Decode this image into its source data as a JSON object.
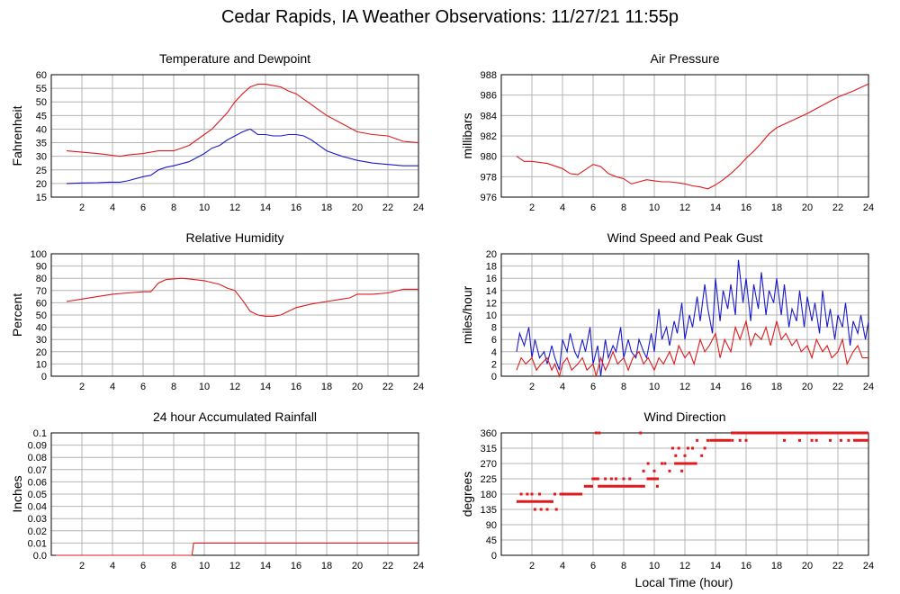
{
  "main_title": "Cedar Rapids, IA Weather Observations: 11/27/21 11:55p",
  "x_axis_title": "Local Time (hour)",
  "colors": {
    "primary": "#e0191b",
    "secondary": "#1a1acc",
    "grid": "#b4b4b4"
  },
  "chart_data": [
    {
      "id": "temp",
      "type": "line",
      "title": "Temperature and Dewpoint",
      "ylabel": "Fahrenheit",
      "xlim": [
        0,
        24
      ],
      "ylim": [
        15,
        60
      ],
      "xticks": [
        2,
        4,
        6,
        8,
        10,
        12,
        14,
        16,
        18,
        20,
        22,
        24
      ],
      "yticks": [
        15,
        20,
        25,
        30,
        35,
        40,
        45,
        50,
        55,
        60
      ],
      "grid": true,
      "series": [
        {
          "color": "#e0191b",
          "x": [
            1,
            2,
            3,
            3.8,
            4.5,
            5,
            6,
            7,
            8,
            9,
            10,
            10.5,
            11,
            11.5,
            12,
            12.5,
            13,
            13.5,
            14,
            14.5,
            15,
            15.5,
            16,
            16.5,
            17,
            17.5,
            18,
            19,
            20,
            21,
            22,
            23,
            24
          ],
          "y": [
            32,
            31.5,
            31,
            30.5,
            30,
            30.5,
            31,
            32,
            32,
            34,
            38,
            40,
            43,
            46,
            50,
            53,
            55.5,
            56.5,
            56.5,
            56,
            55.5,
            54,
            53,
            51,
            49,
            47,
            45,
            42,
            39,
            38,
            37.5,
            35.5,
            35
          ]
        },
        {
          "color": "#1a1acc",
          "x": [
            1,
            2,
            3,
            3.8,
            4.5,
            5,
            6,
            6.5,
            7,
            7.5,
            8,
            9,
            10,
            10.5,
            11,
            11.5,
            12,
            12.5,
            13,
            13.5,
            14,
            14.5,
            15,
            15.5,
            16,
            16.5,
            17,
            17.5,
            18,
            19,
            20,
            21,
            22,
            23,
            24
          ],
          "y": [
            20,
            20.2,
            20.3,
            20.5,
            20.5,
            21,
            22.5,
            23,
            25,
            26,
            26.5,
            28,
            31,
            33,
            34,
            36,
            37.5,
            39,
            40,
            38,
            38,
            37.5,
            37.5,
            38,
            38,
            37.5,
            36,
            34,
            32,
            30,
            28.5,
            27.5,
            27,
            26.5,
            26.5
          ]
        }
      ]
    },
    {
      "id": "pressure",
      "type": "line",
      "title": "Air Pressure",
      "ylabel": "millibars",
      "xlim": [
        0,
        24
      ],
      "ylim": [
        976,
        988
      ],
      "xticks": [
        2,
        4,
        6,
        8,
        10,
        12,
        14,
        16,
        18,
        20,
        22,
        24
      ],
      "yticks": [
        976,
        978,
        980,
        982,
        984,
        986,
        988
      ],
      "grid": true,
      "series": [
        {
          "color": "#e0191b",
          "x": [
            1,
            1.5,
            2,
            3,
            4,
            4.5,
            5,
            5.5,
            6,
            6.5,
            7,
            7.5,
            8,
            8.5,
            9,
            9.5,
            10,
            10.5,
            11,
            11.5,
            12,
            12.5,
            13,
            13.5,
            14,
            14.5,
            15,
            15.5,
            16,
            16.5,
            17,
            17.5,
            18,
            19,
            20,
            20.5,
            21,
            22,
            23,
            24
          ],
          "y": [
            980,
            979.5,
            979.5,
            979.3,
            978.8,
            978.3,
            978.2,
            978.7,
            979.2,
            979,
            978.3,
            978,
            977.8,
            977.3,
            977.5,
            977.7,
            977.6,
            977.5,
            977.5,
            977.4,
            977.3,
            977.1,
            977,
            976.8,
            977.2,
            977.7,
            978.3,
            979,
            979.8,
            980.5,
            981.3,
            982.2,
            982.8,
            983.5,
            984.2,
            984.6,
            985,
            985.8,
            986.4,
            987.1
          ]
        }
      ]
    },
    {
      "id": "humidity",
      "type": "line",
      "title": "Relative Humidity",
      "ylabel": "Percent",
      "xlim": [
        0,
        24
      ],
      "ylim": [
        0,
        100
      ],
      "xticks": [
        2,
        4,
        6,
        8,
        10,
        12,
        14,
        16,
        18,
        20,
        22,
        24
      ],
      "yticks": [
        0,
        10,
        20,
        30,
        40,
        50,
        60,
        70,
        80,
        90,
        100
      ],
      "grid": true,
      "series": [
        {
          "color": "#e0191b",
          "x": [
            1,
            2,
            3,
            4,
            5,
            6,
            6.5,
            7,
            7.5,
            8,
            8.5,
            9,
            10,
            11,
            11.5,
            12,
            12.5,
            13,
            13.5,
            14,
            14.5,
            15,
            15.5,
            16,
            17,
            18,
            19,
            19.5,
            20,
            21,
            22,
            23,
            24
          ],
          "y": [
            61,
            63,
            65,
            67,
            68,
            69,
            69,
            76,
            79,
            79.5,
            80,
            79.5,
            78,
            75,
            72,
            70,
            62,
            53,
            50,
            49,
            49,
            50,
            53,
            56,
            59,
            61,
            63,
            64,
            67,
            67,
            68,
            71,
            71
          ]
        }
      ]
    },
    {
      "id": "wind",
      "type": "line",
      "title": "Wind Speed and Peak Gust",
      "ylabel": "miles/hour",
      "xlim": [
        0,
        24
      ],
      "ylim": [
        0,
        20
      ],
      "xticks": [
        2,
        4,
        6,
        8,
        10,
        12,
        14,
        16,
        18,
        20,
        22,
        24
      ],
      "yticks": [
        0,
        2,
        4,
        6,
        8,
        10,
        12,
        14,
        16,
        18,
        20
      ],
      "grid": true,
      "series": [
        {
          "color": "#1a1acc",
          "x": [
            1,
            1.2,
            1.5,
            1.8,
            2,
            2.2,
            2.5,
            2.8,
            3,
            3.3,
            3.5,
            3.8,
            4,
            4.3,
            4.5,
            4.8,
            5,
            5.3,
            5.5,
            5.8,
            6,
            6.3,
            6.5,
            6.8,
            7,
            7.3,
            7.5,
            7.8,
            8,
            8.3,
            8.5,
            8.8,
            9,
            9.3,
            9.5,
            9.8,
            10,
            10.3,
            10.5,
            10.8,
            11,
            11.3,
            11.5,
            11.8,
            12,
            12.3,
            12.5,
            12.8,
            13,
            13.3,
            13.5,
            13.8,
            14,
            14.3,
            14.5,
            14.8,
            15,
            15.3,
            15.5,
            15.8,
            16,
            16.3,
            16.5,
            16.8,
            17,
            17.3,
            17.5,
            17.8,
            18,
            18.3,
            18.5,
            18.8,
            19,
            19.3,
            19.5,
            19.8,
            20,
            20.3,
            20.5,
            20.8,
            21,
            21.3,
            21.5,
            21.8,
            22,
            22.3,
            22.5,
            22.8,
            23,
            23.3,
            23.5,
            23.8,
            24
          ],
          "y": [
            4,
            7,
            5,
            8,
            3,
            6,
            3,
            4,
            2,
            5,
            3,
            1,
            6,
            4,
            7,
            4,
            3,
            6,
            4,
            8,
            2,
            5,
            0,
            6,
            3,
            5,
            4,
            8,
            3,
            6,
            4,
            3,
            6,
            4,
            3,
            7,
            4,
            11,
            6,
            8,
            5,
            9,
            7,
            12,
            6,
            10,
            8,
            13,
            9,
            15,
            11,
            7,
            16,
            9,
            14,
            11,
            15,
            10,
            19,
            12,
            16,
            9,
            15,
            11,
            17,
            10,
            14,
            12,
            16,
            10,
            15,
            8,
            11,
            9,
            14,
            8,
            13,
            9,
            12,
            7,
            14,
            8,
            11,
            6,
            10,
            8,
            12,
            5,
            9,
            7,
            10,
            6,
            9
          ]
        },
        {
          "color": "#e0191b",
          "x": [
            1,
            1.3,
            1.6,
            2,
            2.3,
            2.6,
            3,
            3.3,
            3.5,
            3.8,
            4,
            4.3,
            4.6,
            5,
            5.3,
            5.6,
            6,
            6.2,
            6.5,
            6.8,
            7,
            7.3,
            7.6,
            8,
            8.3,
            8.6,
            9,
            9.3,
            9.6,
            10,
            10.3,
            10.6,
            11,
            11.3,
            11.6,
            12,
            12.3,
            12.6,
            13,
            13.3,
            13.6,
            14,
            14.3,
            14.6,
            15,
            15.3,
            15.6,
            16,
            16.3,
            16.6,
            17,
            17.3,
            17.6,
            18,
            18.3,
            18.6,
            19,
            19.3,
            19.6,
            20,
            20.3,
            20.6,
            21,
            21.3,
            21.6,
            22,
            22.3,
            22.6,
            23,
            23.3,
            23.6,
            24
          ],
          "y": [
            1,
            3,
            2,
            3,
            1,
            2,
            3,
            1,
            2,
            0,
            2,
            3,
            1,
            2,
            3,
            1,
            2,
            0,
            3,
            1,
            2,
            4,
            2,
            3,
            1,
            3,
            4,
            2,
            3,
            1,
            3,
            2,
            4,
            2,
            5,
            3,
            4,
            2,
            6,
            4,
            5,
            7,
            3,
            6,
            4,
            8,
            6,
            9,
            5,
            7,
            6,
            8,
            5,
            9,
            6,
            7,
            5,
            6,
            4,
            5,
            3,
            6,
            4,
            5,
            3,
            4,
            6,
            2,
            4,
            5,
            3,
            3
          ]
        }
      ]
    },
    {
      "id": "rain",
      "type": "line",
      "title": "24 hour Accumulated Rainfall",
      "ylabel": "Inches",
      "xlim": [
        0,
        24
      ],
      "ylim": [
        0,
        0.1
      ],
      "xticks": [
        2,
        4,
        6,
        8,
        10,
        12,
        14,
        16,
        18,
        20,
        22,
        24
      ],
      "yticks": [
        "0.0",
        "0.01",
        "0.02",
        "0.03",
        "0.04",
        "0.05",
        "0.06",
        "0.07",
        "0.08",
        "0.09",
        "0.1"
      ],
      "grid": true,
      "series": [
        {
          "color": "#e0191b",
          "x": [
            0.3,
            9.2,
            9.3,
            24
          ],
          "y": [
            0,
            0,
            0.01,
            0.01
          ]
        }
      ]
    },
    {
      "id": "direction",
      "type": "scatter",
      "title": "Wind Direction",
      "ylabel": "degrees",
      "xlabel": "Local Time (hour)",
      "xlim": [
        0,
        24
      ],
      "ylim": [
        0,
        360
      ],
      "xticks": [
        2,
        4,
        6,
        8,
        10,
        12,
        14,
        16,
        18,
        20,
        22,
        24
      ],
      "yticks": [
        0,
        45,
        90,
        135,
        180,
        225,
        270,
        315,
        360
      ],
      "grid": true,
      "segments": [
        {
          "color": "#e0191b",
          "y": 158,
          "x0": 1.0,
          "x1": 3.4
        },
        {
          "color": "#e0191b",
          "y": 180,
          "x0": 3.8,
          "x1": 5.3
        },
        {
          "color": "#e0191b",
          "y": 203,
          "x0": 5.4,
          "x1": 6.0
        },
        {
          "color": "#e0191b",
          "y": 225,
          "x0": 5.9,
          "x1": 6.4
        },
        {
          "color": "#e0191b",
          "y": 203,
          "x0": 6.3,
          "x1": 9.4
        },
        {
          "color": "#e0191b",
          "y": 225,
          "x0": 9.5,
          "x1": 10.3
        },
        {
          "color": "#e0191b",
          "y": 270,
          "x0": 11.3,
          "x1": 12.8
        },
        {
          "color": "#e0191b",
          "y": 338,
          "x0": 13.6,
          "x1": 15.0
        },
        {
          "color": "#e0191b",
          "y": 360,
          "x0": 15.0,
          "x1": 24.0
        },
        {
          "color": "#e0191b",
          "y": 338,
          "x0": 23.0,
          "x1": 24.0
        }
      ],
      "points": {
        "color": "#e0191b",
        "x": [
          1.3,
          1.7,
          2.0,
          2.2,
          2.5,
          3.0,
          3.3,
          3.6,
          2.6,
          3.5,
          6.2,
          6.4,
          6.8,
          7.2,
          7.5,
          8.0,
          8.4,
          9.1,
          9.3,
          9.6,
          9.8,
          10.0,
          10.2,
          10.5,
          10.7,
          11.0,
          11.2,
          11.4,
          11.6,
          11.8,
          12.0,
          12.2,
          12.5,
          12.8,
          13.1,
          13.3,
          13.5,
          15.1,
          15.4,
          15.6,
          16.0,
          18.5,
          19.5,
          20.3,
          20.6,
          21.5,
          21.8,
          22.2,
          22.7
        ],
        "y": [
          180,
          180,
          180,
          135,
          180,
          135,
          158,
          135,
          135,
          180,
          360,
          360,
          225,
          225,
          225,
          225,
          225,
          360,
          248,
          270,
          225,
          248,
          203,
          270,
          270,
          248,
          315,
          293,
          315,
          248,
          293,
          315,
          315,
          338,
          293,
          315,
          338,
          338,
          360,
          338,
          338,
          338,
          338,
          338,
          338,
          338,
          360,
          338,
          338
        ]
      }
    }
  ]
}
